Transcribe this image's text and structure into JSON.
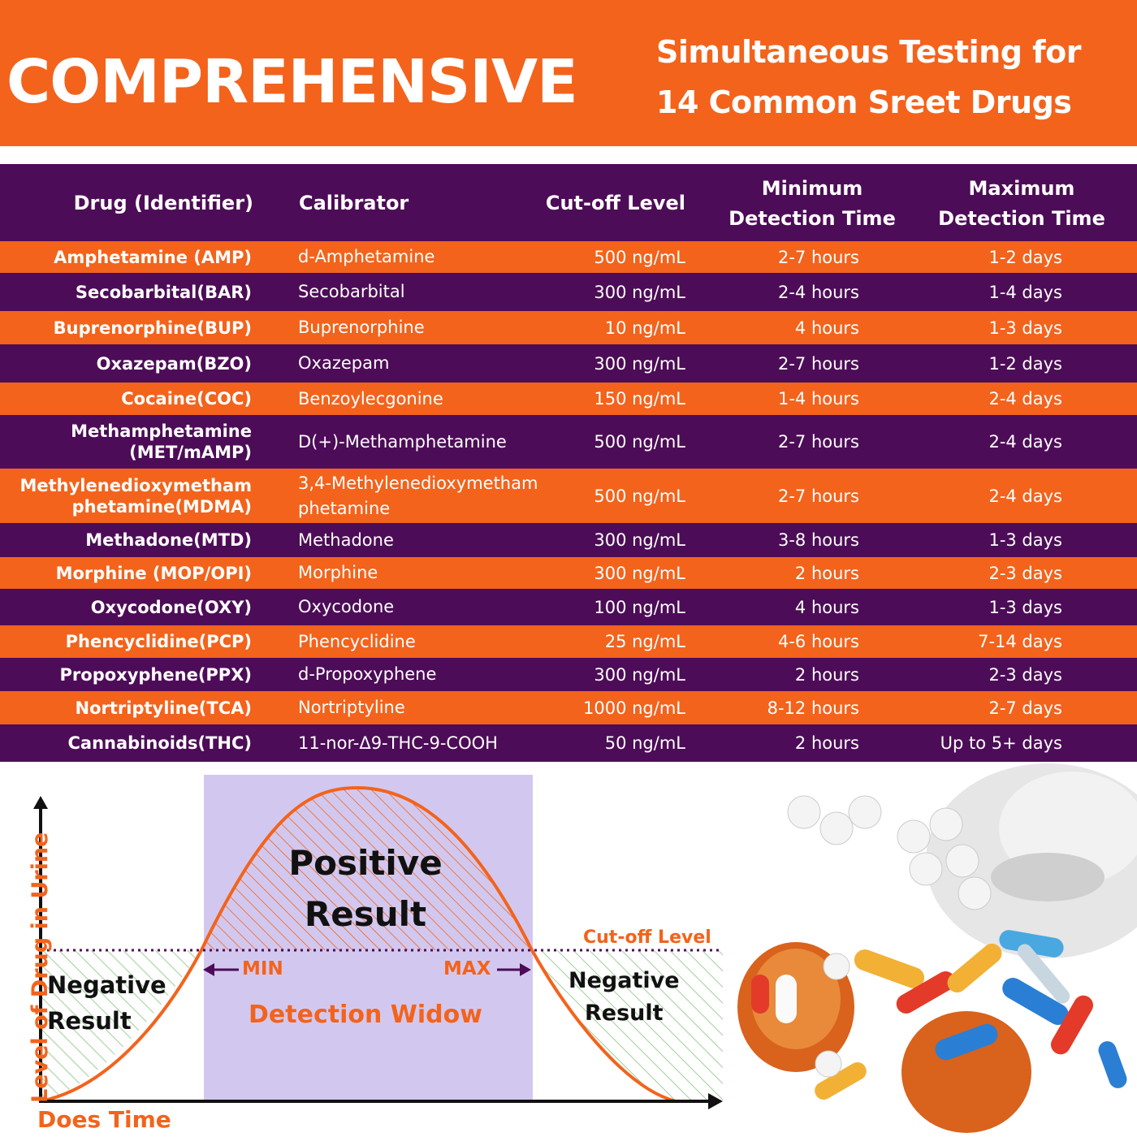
{
  "header": {
    "title": "COMPREHENSIVE",
    "subtitle_line1": "Simultaneous Testing for",
    "subtitle_line2": "14 Common Sreet Drugs"
  },
  "table": {
    "headers": {
      "drug": "Drug (Identifier)",
      "calibrator": "Calibrator",
      "cutoff": "Cut-off Level",
      "min_line1": "Minimum",
      "min_line2": "Detection Time",
      "max_line1": "Maximum",
      "max_line2": "Detection Time"
    },
    "rows": [
      {
        "drug": "Amphetamine (AMP)",
        "calibrator": "d-Amphetamine",
        "cutoff": "500 ng/mL",
        "min": "2-7 hours",
        "max": "1-2 days"
      },
      {
        "drug": "Secobarbital(BAR)",
        "calibrator": "Secobarbital",
        "cutoff": "300 ng/mL",
        "min": "2-4 hours",
        "max": "1-4 days"
      },
      {
        "drug": "Buprenorphine(BUP)",
        "calibrator": "Buprenorphine",
        "cutoff": "10 ng/mL",
        "min": "4 hours",
        "max": "1-3 days"
      },
      {
        "drug": "Oxazepam(BZO)",
        "calibrator": "Oxazepam",
        "cutoff": "300 ng/mL",
        "min": "2-7 hours",
        "max": "1-2 days"
      },
      {
        "drug": "Cocaine(COC)",
        "calibrator": "Benzoylecgonine",
        "cutoff": "150 ng/mL",
        "min": "1-4 hours",
        "max": "2-4 days"
      },
      {
        "drug": "Methamphetamine\n(MET/mAMP)",
        "calibrator": "D(+)-Methamphetamine",
        "cutoff": "500 ng/mL",
        "min": "2-7 hours",
        "max": "2-4 days"
      },
      {
        "drug": "Methylenedioxymetham\nphetamine(MDMA)",
        "calibrator": "3,4-Methylenedioxymetham\nphetamine",
        "cutoff": "500 ng/mL",
        "min": "2-7 hours",
        "max": "2-4 days"
      },
      {
        "drug": "Methadone(MTD)",
        "calibrator": "Methadone",
        "cutoff": "300 ng/mL",
        "min": "3-8 hours",
        "max": "1-3 days"
      },
      {
        "drug": "Morphine (MOP/OPI)",
        "calibrator": "Morphine",
        "cutoff": "300 ng/mL",
        "min": "2 hours",
        "max": "2-3 days"
      },
      {
        "drug": "Oxycodone(OXY)",
        "calibrator": "Oxycodone",
        "cutoff": "100 ng/mL",
        "min": "4 hours",
        "max": "1-3 days"
      },
      {
        "drug": "Phencyclidine(PCP)",
        "calibrator": "Phencyclidine",
        "cutoff": "25 ng/mL",
        "min": "4-6 hours",
        "max": "7-14 days"
      },
      {
        "drug": "Propoxyphene(PPX)",
        "calibrator": "d-Propoxyphene",
        "cutoff": "300 ng/mL",
        "min": "2 hours",
        "max": "2-3 days"
      },
      {
        "drug": "Nortriptyline(TCA)",
        "calibrator": "Nortriptyline",
        "cutoff": "1000 ng/mL",
        "min": "8-12 hours",
        "max": "2-7 days"
      },
      {
        "drug": "Cannabinoids(THC)",
        "calibrator": "11-nor-Δ9-THC-9-COOH",
        "cutoff": "50 ng/mL",
        "min": "2 hours",
        "max": "Up to 5+ days"
      }
    ]
  },
  "graph": {
    "ylabel": "Level of Drug in Urine",
    "xlabel": "Does Time",
    "positive_line1": "Positive",
    "positive_line2": "Result",
    "cutoff_label": "Cut-off Level",
    "min_label": "MIN",
    "max_label": "MAX",
    "window_label": "Detection Widow",
    "negative_left_line1": "Negative",
    "negative_left_line2": "Result",
    "negative_right_line1": "Negative",
    "negative_right_line2": "Result"
  },
  "colors": {
    "orange": "#f3631c",
    "purple": "#4d0c57",
    "window": "#d2c8ef",
    "negative_hatch": "#9fcf9a"
  },
  "icons": [
    "pills-image",
    "powder-spoon-image"
  ]
}
